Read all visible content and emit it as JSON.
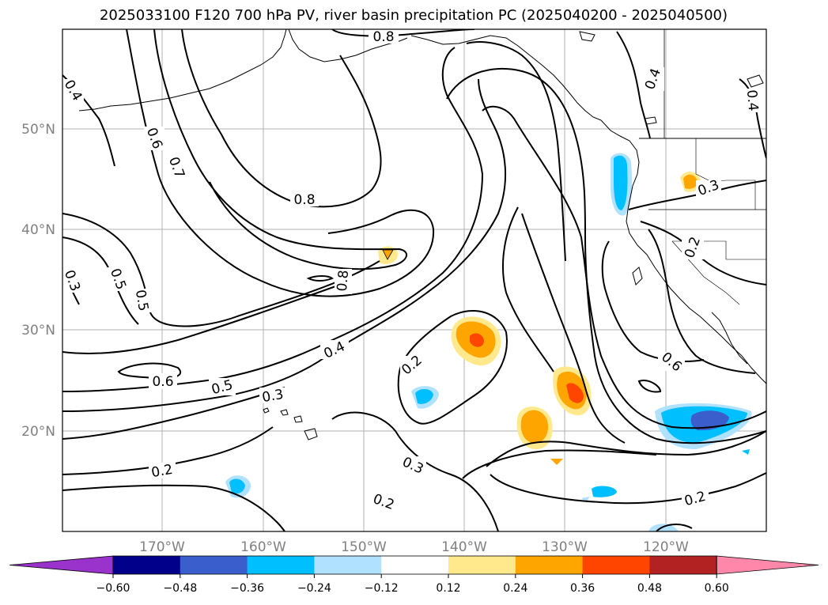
{
  "title": "2025033100 F120 700 hPa PV, river basin precipitation PC (2025040200 - 2025040500)",
  "axes": {
    "lat_ticks": [
      "50°N",
      "40°N",
      "30°N",
      "20°N"
    ],
    "lon_ticks": [
      "170°W",
      "160°W",
      "150°W",
      "140°W",
      "130°W",
      "120°W"
    ]
  },
  "colorbar": {
    "labels": [
      "−0.60",
      "−0.48",
      "−0.36",
      "−0.24",
      "−0.12",
      "0.12",
      "0.24",
      "0.36",
      "0.48",
      "0.60"
    ],
    "colors": [
      "#9933cc",
      "#00008b",
      "#3a5fcd",
      "#00bfff",
      "#b0e2ff",
      "#ffffff",
      "#ffe98c",
      "#ffa500",
      "#ff4500",
      "#b22222",
      "#ff88aa"
    ]
  },
  "contour_labels": [
    "0.8",
    "0.4",
    "0.4",
    "0.6",
    "0.7",
    "0.8",
    "0.3",
    "0.4",
    "0.5",
    "0.8",
    "0.5",
    "0.3",
    "0.2",
    "0.6",
    "0.5",
    "0.4",
    "0.3",
    "0.2",
    "0.2",
    "0.3",
    "0.2",
    "0.2",
    "0.6"
  ],
  "precip_colors": {
    "light_pos": "#ffe98c",
    "mid_pos": "#ffa500",
    "high_pos": "#ff4500",
    "light_neg": "#b0e2ff",
    "mid_neg": "#00bfff",
    "high_neg": "#3a5fcd"
  }
}
